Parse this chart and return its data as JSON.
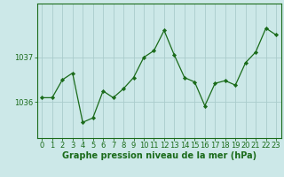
{
  "x": [
    0,
    1,
    2,
    3,
    4,
    5,
    6,
    7,
    8,
    9,
    10,
    11,
    12,
    13,
    14,
    15,
    16,
    17,
    18,
    19,
    20,
    21,
    22,
    23
  ],
  "y": [
    1036.1,
    1036.1,
    1036.5,
    1036.65,
    1035.55,
    1035.65,
    1036.25,
    1036.1,
    1036.3,
    1036.55,
    1037.0,
    1037.15,
    1037.6,
    1037.05,
    1036.55,
    1036.45,
    1035.92,
    1036.42,
    1036.48,
    1036.38,
    1036.88,
    1037.12,
    1037.65,
    1037.5
  ],
  "line_color": "#1a6b1a",
  "marker_color": "#1a6b1a",
  "bg_color": "#cce8e8",
  "grid_color": "#aacccc",
  "axis_color": "#1a6b1a",
  "xlabel": "Graphe pression niveau de la mer (hPa)",
  "yticks": [
    1036,
    1037
  ],
  "ylim": [
    1035.2,
    1038.2
  ],
  "xlim": [
    -0.5,
    23.5
  ],
  "xtick_labels": [
    "0",
    "1",
    "2",
    "3",
    "4",
    "5",
    "6",
    "7",
    "8",
    "9",
    "10",
    "11",
    "12",
    "13",
    "14",
    "15",
    "16",
    "17",
    "18",
    "19",
    "20",
    "21",
    "22",
    "23"
  ],
  "xlabel_fontsize": 7.0,
  "tick_fontsize": 6.0
}
